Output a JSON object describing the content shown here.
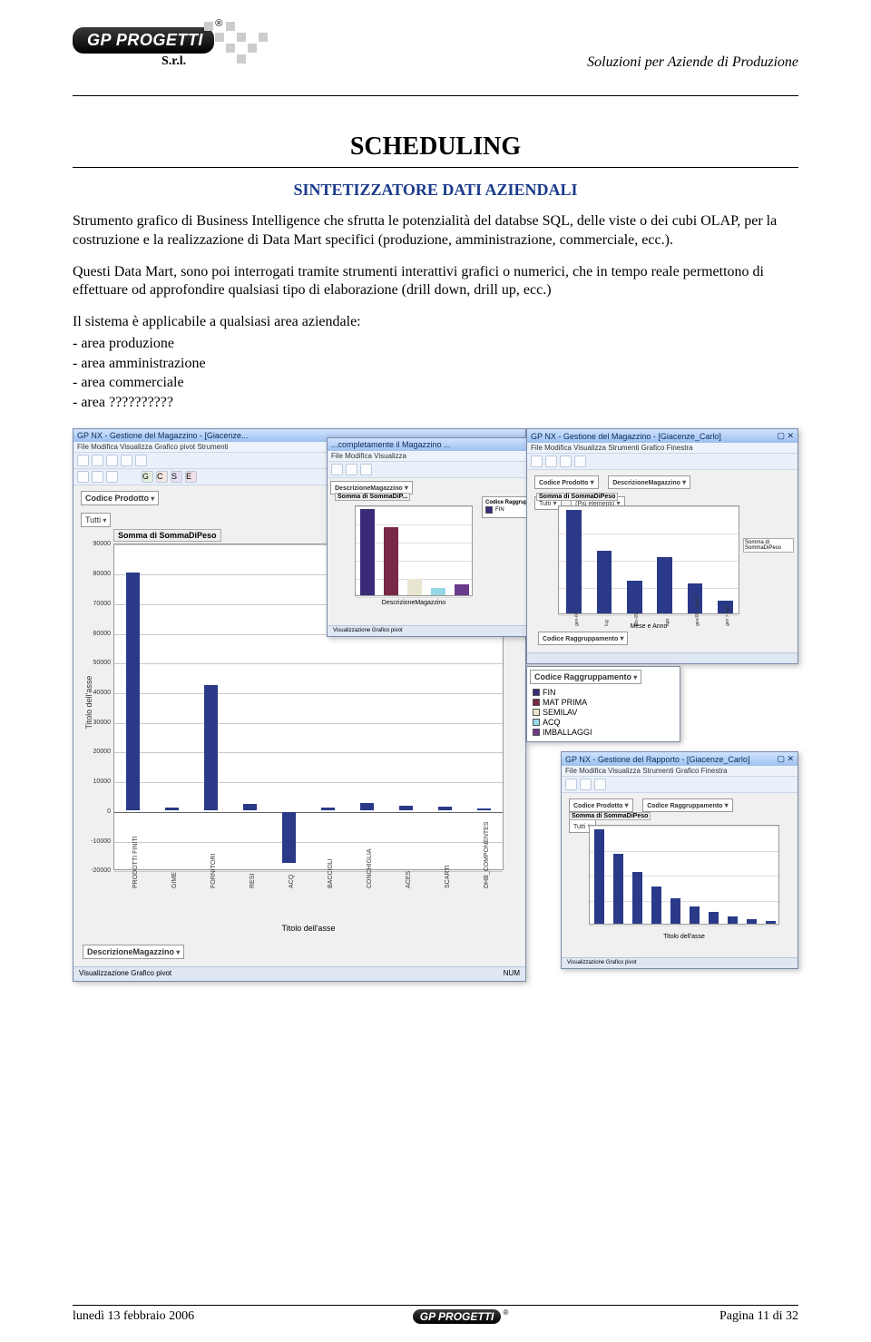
{
  "header": {
    "logo_text": "GP PROGETTI",
    "srl": "S.r.l.",
    "tagline": "Soluzioni per Aziende di Produzione"
  },
  "title_main": "SCHEDULING",
  "title_sub": "SINTETIZZATORE DATI AZIENDALI",
  "para1": "Strumento grafico di Business Intelligence che sfrutta le potenzialità del databse SQL, delle viste o dei cubi OLAP, per la costruzione e la realizzazione di Data Mart specifici (produzione, amministrazione, commerciale, ecc.).",
  "para2": "Questi Data Mart, sono poi interrogati tramite strumenti interattivi grafici o numerici, che in tempo reale permettono di effettuare od approfondire qualsiasi tipo di elaborazione (drill down, drill up, ecc.)",
  "list_intro": "Il sistema è applicabile a qualsiasi area aziendale:",
  "list_items": [
    "- area produzione",
    "- area amministrazione",
    "- area commerciale",
    "- area ??????????"
  ],
  "main_window": {
    "title": "GP NX - Gestione del Magazzino - [Giacenze...",
    "menu": "File   Modifica   Visualizza   Grafico pivot   Strumenti",
    "pivot_prod": "Codice Prodotto",
    "pivot_all": "Tutti",
    "chart_title": "Somma di SommaDiPeso",
    "y_label": "Titolo dell'asse",
    "x_title": "Titolo dell'asse",
    "desc_pivot": "DescrizioneMagazzino",
    "status": "Visualizzazione Grafico pivot",
    "status_right": "NUM",
    "ylim": [
      -20000,
      90000
    ],
    "ytick_step": 10000,
    "categories": [
      "PRODOTTI FINITI",
      "GIME",
      "FORNITORI",
      "RESI",
      "ACQ",
      "BACCIOLI",
      "CONCHIGLIA",
      "ACES",
      "SCARTI",
      "DHB_COMPONENTES"
    ],
    "values": [
      80000,
      1000,
      42000,
      2000,
      -17000,
      1000,
      2500,
      1500,
      1200,
      500
    ],
    "y_ticks": [
      90000,
      80000,
      70000,
      60000,
      50000,
      40000,
      30000,
      20000,
      10000,
      0,
      -10000,
      -20000
    ],
    "bar_color": "#2a3a88",
    "grid_color": "#c8c8c8",
    "background_color": "#ffffff"
  },
  "legend_panel": {
    "title": "Codice Raggruppamento",
    "items": [
      {
        "label": "FIN",
        "color": "#3a2a78"
      },
      {
        "label": "MAT PRIMA",
        "color": "#7a2848"
      },
      {
        "label": "SEMILAV",
        "color": "#e8e6d0"
      },
      {
        "label": "ACQ",
        "color": "#96d8e8"
      },
      {
        "label": "IMBALLAGGI",
        "color": "#6a3a8a"
      }
    ]
  },
  "win2": {
    "title": "...completamente il Magazzino ...",
    "pivot1": "DescrizioneMagazzino",
    "chart_label": "Somma di SommaDiP...",
    "colors": [
      "#3a2a78",
      "#7a2848",
      "#e8e6d0",
      "#96d8e8",
      "#6a3a8a"
    ],
    "heights": [
      0.95,
      0.75,
      0.18,
      0.08,
      0.12
    ],
    "x_title": "DescrizioneMagazzino",
    "legend_title": "Codice Raggruppamento",
    "legend_fin": "FIN"
  },
  "win3": {
    "title": "GP NX - Gestione del Magazzino - [Giacenze_Carlo]",
    "pivot1": "Codice Prodotto",
    "pivot2": "DescrizioneMagazzino",
    "sub1": "Tutti",
    "sub2": "(Più elementi)",
    "series": "Somma di SommaDiPeso",
    "x_title": "Mese e Anno",
    "categories": [
      "gen-04",
      "lug",
      "feb-05",
      "ago",
      "gen/05 - lug/05",
      "gen > ago"
    ],
    "heights": [
      0.95,
      0.58,
      0.3,
      0.52,
      0.28,
      0.12
    ],
    "ylim_low": 0,
    "ylim_high": 18000,
    "bar_color": "#2a3a88",
    "legend": "Codice Raggruppamento"
  },
  "win4": {
    "title": "GP NX - Gestione del Rapporto - [Giacenze_Carlo]",
    "pivot1": "Codice Prodotto",
    "pivot2": "Codice Raggruppamento",
    "sub": "Tutti",
    "series": "Somma di SommaDiPeso",
    "x_title": "Titolo dell'asse",
    "heights": [
      0.95,
      0.7,
      0.52,
      0.38,
      0.26,
      0.18,
      0.12,
      0.08,
      0.05,
      0.03
    ],
    "bar_color": "#2a3a88"
  },
  "footer": {
    "left": "lunedì 13 febbraio 2006",
    "logo": "GP PROGETTI",
    "right": "Pagina 11 di 32"
  }
}
